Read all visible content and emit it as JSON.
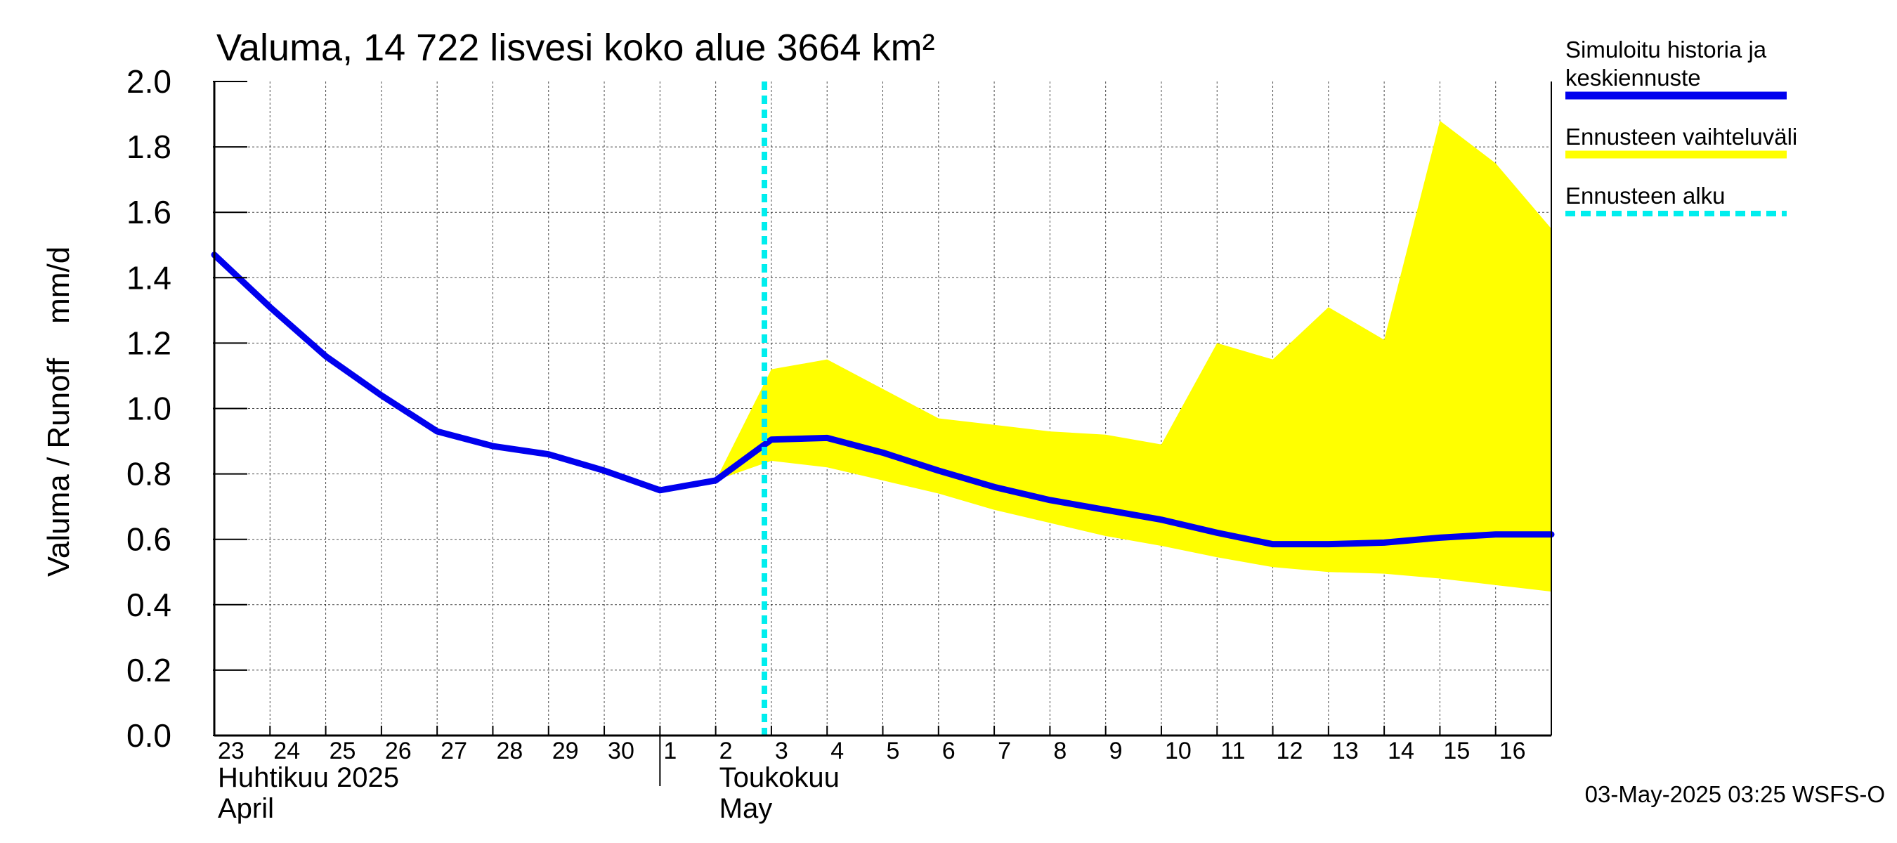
{
  "chart_data": {
    "type": "line",
    "title": "Valuma, 14 722 lisvesi koko alue 3664 km²",
    "ylabel": "Valuma / Runoff    mm/d",
    "ylim": [
      0,
      2.0
    ],
    "yticks": [
      "0.0",
      "0.2",
      "0.4",
      "0.6",
      "0.8",
      "1.0",
      "1.2",
      "1.4",
      "1.6",
      "1.8",
      "2.0"
    ],
    "grid": true,
    "x_start": "2025-04-23",
    "x_end": "2025-05-17",
    "xtick_labels": [
      "23",
      "24",
      "25",
      "26",
      "27",
      "28",
      "29",
      "30",
      "1",
      "2",
      "3",
      "4",
      "5",
      "6",
      "7",
      "8",
      "9",
      "10",
      "11",
      "12",
      "13",
      "14",
      "15",
      "16"
    ],
    "month_labels": [
      {
        "date": "2025-04-23",
        "line1": "Huhtikuu  2025",
        "line2": "April"
      },
      {
        "date": "2025-05-02",
        "line1": "Toukokuu",
        "line2": "May"
      }
    ],
    "forecast_start": "2025-05-02T21:00",
    "series": [
      {
        "name": "Simuloitu historia ja keskiennuste",
        "color": "#0000ee",
        "x": [
          "2025-04-23",
          "2025-04-24",
          "2025-04-25",
          "2025-04-26",
          "2025-04-27",
          "2025-04-28",
          "2025-04-29",
          "2025-04-30",
          "2025-05-01",
          "2025-05-02",
          "2025-05-03",
          "2025-05-04",
          "2025-05-05",
          "2025-05-06",
          "2025-05-07",
          "2025-05-08",
          "2025-05-09",
          "2025-05-10",
          "2025-05-11",
          "2025-05-12",
          "2025-05-13",
          "2025-05-14",
          "2025-05-15",
          "2025-05-16",
          "2025-05-17"
        ],
        "values": [
          1.47,
          1.31,
          1.16,
          1.04,
          0.93,
          0.885,
          0.86,
          0.81,
          0.75,
          0.78,
          0.905,
          0.91,
          0.865,
          0.81,
          0.76,
          0.72,
          0.69,
          0.66,
          0.62,
          0.585,
          0.585,
          0.59,
          0.605,
          0.615,
          0.615
        ]
      },
      {
        "name": "Ennusteen vaihteluväli",
        "color": "#ffff00",
        "x": [
          "2025-05-02",
          "2025-05-03",
          "2025-05-04",
          "2025-05-05",
          "2025-05-06",
          "2025-05-07",
          "2025-05-08",
          "2025-05-09",
          "2025-05-10",
          "2025-05-11",
          "2025-05-12",
          "2025-05-13",
          "2025-05-14",
          "2025-05-15",
          "2025-05-16",
          "2025-05-17"
        ],
        "upper": [
          0.78,
          1.12,
          1.15,
          1.06,
          0.97,
          0.95,
          0.93,
          0.92,
          0.89,
          1.2,
          1.15,
          1.31,
          1.21,
          1.88,
          1.75,
          1.55
        ],
        "lower": [
          0.78,
          0.84,
          0.82,
          0.78,
          0.74,
          0.69,
          0.65,
          0.61,
          0.58,
          0.545,
          0.515,
          0.5,
          0.495,
          0.48,
          0.46,
          0.44
        ]
      }
    ],
    "legend": [
      {
        "label_lines": [
          "Simuloitu historia ja",
          "keskiennuste"
        ],
        "color": "#0000ee",
        "style": "solid"
      },
      {
        "label_lines": [
          "Ennusteen vaihteluväli"
        ],
        "color": "#ffff00",
        "style": "solid"
      },
      {
        "label_lines": [
          "Ennusteen alku"
        ],
        "color": "#00eeee",
        "style": "dashed"
      }
    ],
    "legend_position": "right",
    "footer": "03-May-2025 03:25 WSFS-O"
  }
}
